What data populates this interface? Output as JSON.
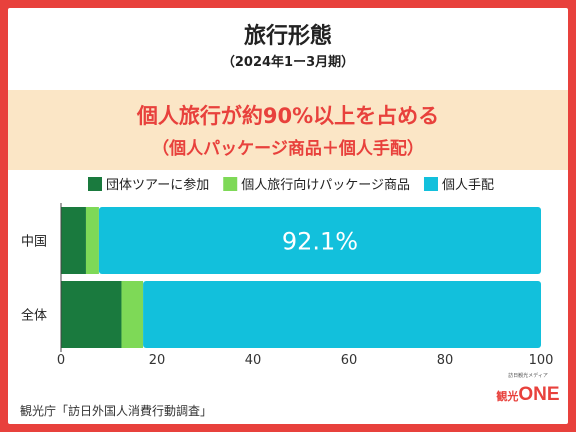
{
  "header": {
    "title": "旅行形態",
    "subtitle": "（2024年1ー3月期）"
  },
  "banner": {
    "line1": "個人旅行が約90%以上を占める",
    "line2": "（個人パッケージ商品＋個人手配）"
  },
  "chart_data": {
    "type": "bar",
    "orientation": "horizontal",
    "stacked": true,
    "categories": [
      "中国",
      "全体"
    ],
    "series": [
      {
        "name": "団体ツアーに参加",
        "color": "#1a7a3e",
        "values": [
          5.2,
          12.6
        ]
      },
      {
        "name": "個人旅行向けパッケージ商品",
        "color": "#7ed957",
        "values": [
          2.7,
          4.5
        ]
      },
      {
        "name": "個人手配",
        "color": "#12c0dc",
        "values": [
          92.1,
          82.9
        ]
      }
    ],
    "annotations": [
      {
        "category": "中国",
        "series": "個人手配",
        "text": "92.1%"
      }
    ],
    "xlim": [
      0,
      100
    ],
    "xticks": [
      "0",
      "20",
      "40",
      "60",
      "80",
      "100"
    ],
    "legend_position": "top",
    "grid": false
  },
  "footer": {
    "source": "観光庁「訪日外国人消費行動調査」",
    "logo_small_text": "訪日観光メディア",
    "logo_kanji": "観光",
    "logo_one": "ONE"
  }
}
